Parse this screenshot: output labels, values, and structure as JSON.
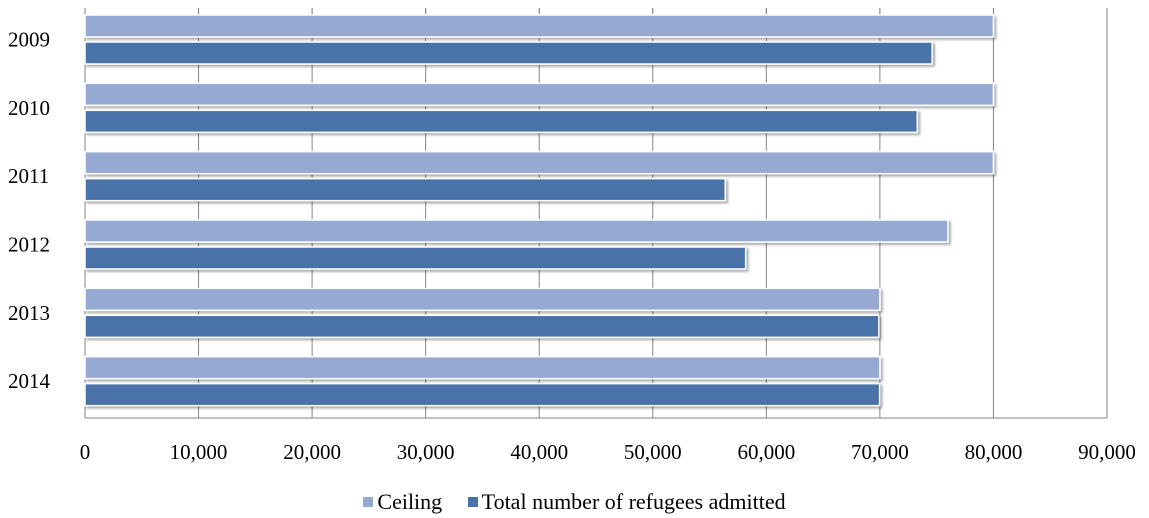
{
  "chart_data": {
    "type": "bar",
    "orientation": "horizontal",
    "categories": [
      "2009",
      "2010",
      "2011",
      "2012",
      "2013",
      "2014"
    ],
    "series": [
      {
        "name": "Ceiling",
        "color": "#95a9d3",
        "values": [
          80000,
          80000,
          80000,
          76000,
          70000,
          70000
        ]
      },
      {
        "name": "Total number of refugees admitted",
        "color": "#4a72a9",
        "values": [
          74602,
          73293,
          56384,
          58179,
          69909,
          69975
        ]
      }
    ],
    "x_ticks": [
      "0",
      "10,000",
      "20,000",
      "30,000",
      "40,000",
      "50,000",
      "60,000",
      "70,000",
      "80,000",
      "90,000"
    ],
    "xlim": [
      0,
      90000
    ],
    "grid": "vertical",
    "legend": "bottom"
  }
}
